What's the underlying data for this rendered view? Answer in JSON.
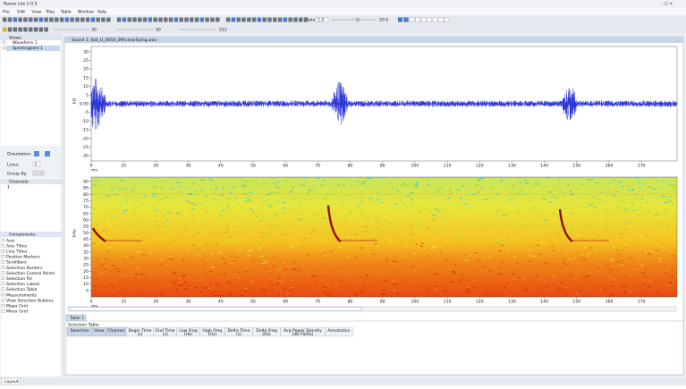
{
  "window": {
    "title": "Raven Lite 2.0.5"
  },
  "menu": [
    "File",
    "Edit",
    "View",
    "Play",
    "Table",
    "Window",
    "Help"
  ],
  "toolbar": {
    "rate_label": "Rate:",
    "rate": "1.0",
    "speed": "20.0",
    "contrast": "30",
    "brightness": "50",
    "fft": "512"
  },
  "side": {
    "views_title": "Views:",
    "views": [
      "Waveform 1",
      "Spectrogram 1"
    ],
    "orientation": "Orientation:",
    "lines": "Lines:",
    "lines_value": "1",
    "group_by": "Group By:",
    "channels_title": "Channels:",
    "channels": [
      "1"
    ],
    "components_title": "Components:",
    "components": [
      "Axis",
      "Axis Titles",
      "Line Titles",
      "Position Markers",
      "Scrollbars",
      "Selection Borders",
      "Selection Control Points",
      "Selection Fill",
      "Selection Labels",
      "Selection Table",
      "Measurements",
      "View Selection Buttons",
      "Major Grid",
      "Minor Grid"
    ],
    "layout_tab": "Layout"
  },
  "sound": {
    "title": "Sound 1: Bat_U_0050_09hclearSping.wav",
    "xlim": [
      0,
      181
    ],
    "xticks": [
      0,
      10,
      20,
      30,
      40,
      50,
      60,
      70,
      80,
      90,
      100,
      110,
      120,
      130,
      140,
      150,
      160,
      170
    ],
    "x_unit": "ms",
    "waveform": {
      "unit": "kU",
      "ylim": [
        -33,
        33
      ],
      "yticks": [
        30,
        25,
        20,
        15,
        10,
        5,
        {
          "value": 0,
          "label": "0.00"
        },
        -5,
        -10,
        -15,
        -20,
        -25,
        -30
      ]
    },
    "spectrogram": {
      "unit": "kHz",
      "ylim": [
        0,
        93.5
      ],
      "yticks": [
        90,
        85,
        80,
        75,
        70,
        65,
        60,
        55,
        50,
        45,
        40,
        35,
        30,
        25,
        20,
        15,
        10,
        5
      ]
    }
  },
  "table": {
    "tab": "Table 1",
    "title": "Selection Table",
    "columns": [
      "Selection",
      "View",
      "Channel",
      "Begin Time\n(s)",
      "End Time\n(s)",
      "Low Freq\n(Hz)",
      "High Freq\n(Hz)",
      "Delta Time\n(s)",
      "Delta Freq\n(Hz)",
      "Avg Power Density\n(dB FS/Hz)",
      "Annotation"
    ]
  }
}
